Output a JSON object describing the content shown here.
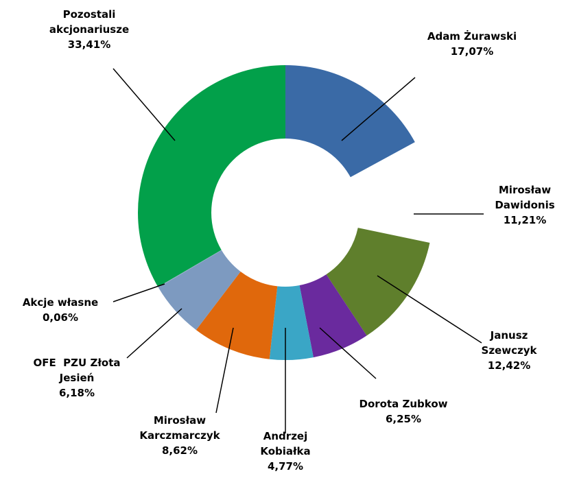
{
  "chart_data": {
    "type": "donut",
    "categories": [
      "Adam Żurawski",
      "Mirosław\nDawidonis",
      "Janusz\nSzewczyk",
      "Dorota Zubkow",
      "Andrzej\nKobiałka",
      "Mirosław\nKarczmarczyk",
      "OFE  PZU Złota\nJesień",
      "Akcje własne",
      "Pozostali\nakcjonariusze"
    ],
    "values": [
      17.07,
      11.21,
      12.42,
      6.25,
      4.77,
      8.62,
      6.18,
      0.06,
      33.41
    ],
    "value_labels": [
      "17,07%",
      "11,21%",
      "12,42%",
      "6,25%",
      "4,77%",
      "8,62%",
      "6,18%",
      "0,06%",
      "33,41%"
    ],
    "colors": [
      "#3a6aa6",
      "#ffffff",
      "#5f7f2c",
      "#6a2a9e",
      "#3aa6c6",
      "#e0680c",
      "#7d9ac0",
      "#9bb0cc",
      "#02a04a"
    ]
  }
}
